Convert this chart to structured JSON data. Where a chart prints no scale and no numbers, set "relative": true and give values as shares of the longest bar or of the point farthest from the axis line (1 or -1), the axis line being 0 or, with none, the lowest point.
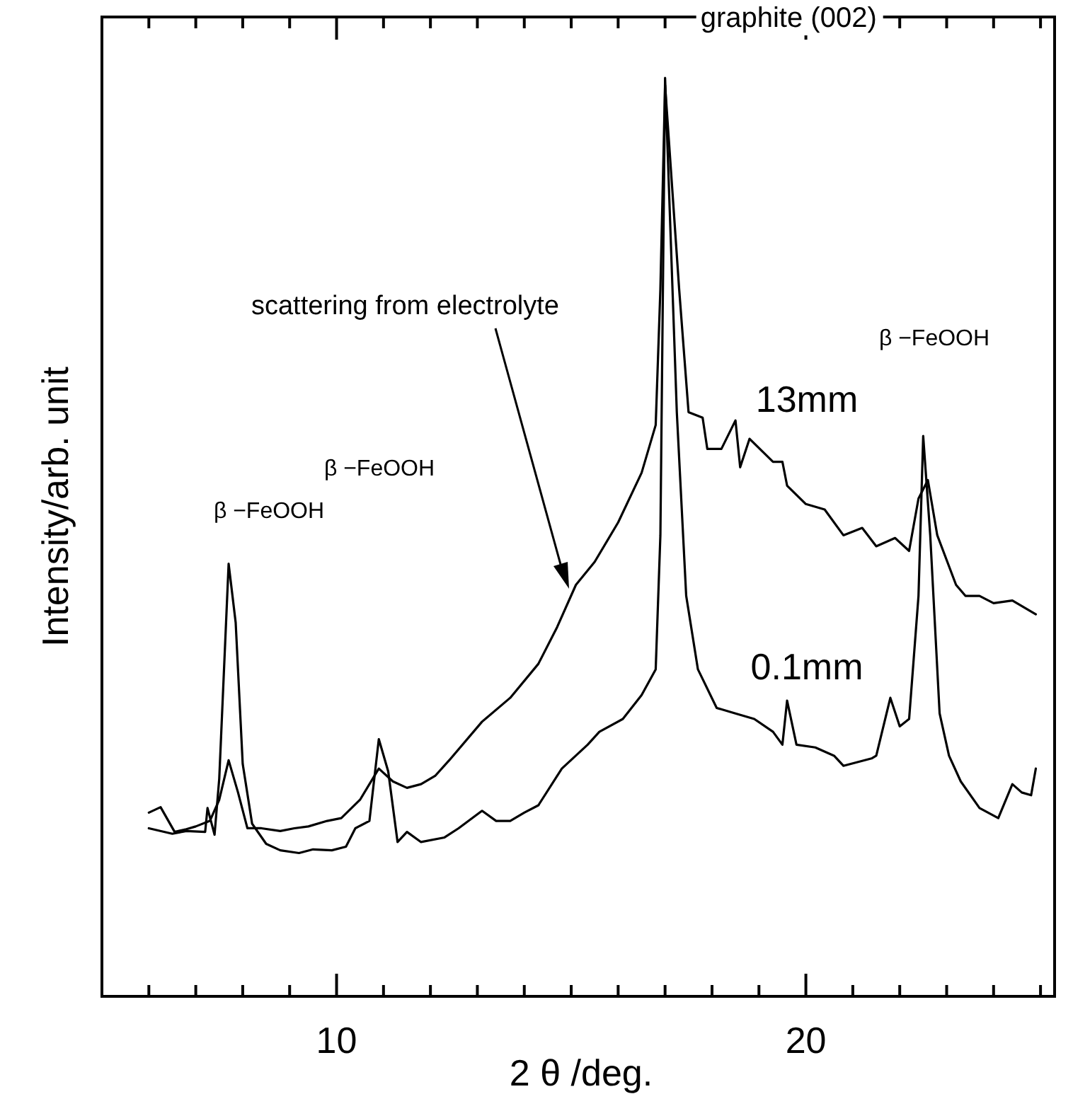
{
  "chart_data": {
    "type": "line",
    "xlabel": "2 θ /deg.",
    "ylabel": "Intensity/arb. unit",
    "relative": true,
    "xlim": [
      5,
      25.3
    ],
    "xticks": [
      {
        "value": 5,
        "label": null
      },
      {
        "value": 6,
        "label": null
      },
      {
        "value": 7,
        "label": null
      },
      {
        "value": 8,
        "label": null
      },
      {
        "value": 9,
        "label": null
      },
      10,
      {
        "value": 11,
        "label": null
      },
      {
        "value": 12,
        "label": null
      },
      {
        "value": 13,
        "label": null
      },
      {
        "value": 14,
        "label": null
      },
      {
        "value": 15,
        "label": null
      },
      {
        "value": 16,
        "label": null
      },
      {
        "value": 17,
        "label": null
      },
      {
        "value": 18,
        "label": null
      },
      {
        "value": 19,
        "label": null
      },
      20,
      {
        "value": 21,
        "label": null
      },
      {
        "value": 22,
        "label": null
      },
      {
        "value": 23,
        "label": null
      },
      {
        "value": 24,
        "label": null
      },
      {
        "value": 25,
        "label": null
      }
    ],
    "marker": "none",
    "line_style": "solid",
    "grid": false,
    "legend": false,
    "series": [
      {
        "name": "13mm",
        "color": "#000000",
        "x": [
          6.0,
          6.25,
          6.55,
          6.8,
          7.0,
          7.3,
          7.5,
          7.7,
          7.9,
          8.1,
          8.4,
          8.8,
          9.1,
          9.4,
          9.8,
          10.1,
          10.5,
          10.9,
          11.2,
          11.5,
          11.8,
          12.1,
          12.4,
          13.1,
          13.7,
          14.3,
          14.7,
          15.1,
          15.5,
          16.0,
          16.5,
          16.8,
          16.9,
          17.0,
          17.3,
          17.5,
          17.8,
          17.9,
          18.2,
          18.5,
          18.6,
          18.8,
          19.3,
          19.5,
          19.6,
          20.0,
          20.4,
          20.8,
          21.2,
          21.5,
          21.9,
          22.2,
          22.4,
          22.6,
          22.8,
          23.2,
          23.4,
          23.7,
          24.0,
          24.4,
          24.9
        ],
        "values": [
          0.2,
          0.206,
          0.179,
          0.182,
          0.185,
          0.191,
          0.214,
          0.257,
          0.222,
          0.183,
          0.183,
          0.18,
          0.183,
          0.185,
          0.191,
          0.194,
          0.214,
          0.248,
          0.234,
          0.227,
          0.231,
          0.24,
          0.257,
          0.299,
          0.325,
          0.362,
          0.402,
          0.448,
          0.473,
          0.516,
          0.57,
          0.622,
          0.77,
          0.992,
          0.77,
          0.636,
          0.63,
          0.596,
          0.596,
          0.627,
          0.576,
          0.607,
          0.582,
          0.582,
          0.556,
          0.536,
          0.53,
          0.502,
          0.51,
          0.49,
          0.499,
          0.485,
          0.542,
          0.562,
          0.502,
          0.448,
          0.436,
          0.436,
          0.428,
          0.431,
          0.416
        ]
      },
      {
        "name": "0.1mm",
        "color": "#000000",
        "x": [
          6.0,
          6.5,
          6.8,
          7.2,
          7.25,
          7.4,
          7.5,
          7.7,
          7.85,
          8.0,
          8.2,
          8.5,
          8.8,
          9.2,
          9.5,
          9.9,
          10.2,
          10.4,
          10.7,
          10.9,
          11.1,
          11.3,
          11.5,
          11.8,
          12.3,
          12.6,
          13.1,
          13.4,
          13.7,
          14.0,
          14.3,
          14.8,
          15.35,
          15.6,
          16.1,
          16.5,
          16.8,
          16.9,
          17.0,
          17.25,
          17.45,
          17.7,
          18.1,
          18.5,
          18.9,
          19.3,
          19.5,
          19.6,
          19.8,
          20.2,
          20.6,
          20.8,
          21.4,
          21.5,
          21.8,
          22.0,
          22.2,
          22.4,
          22.5,
          22.65,
          22.85,
          23.05,
          23.3,
          23.7,
          24.1,
          24.4,
          24.6,
          24.8,
          24.9
        ],
        "values": [
          0.183,
          0.177,
          0.18,
          0.179,
          0.205,
          0.176,
          0.237,
          0.471,
          0.407,
          0.253,
          0.188,
          0.166,
          0.159,
          0.156,
          0.16,
          0.159,
          0.163,
          0.183,
          0.191,
          0.28,
          0.245,
          0.168,
          0.179,
          0.168,
          0.173,
          0.183,
          0.202,
          0.191,
          0.191,
          0.2,
          0.208,
          0.248,
          0.274,
          0.288,
          0.302,
          0.328,
          0.356,
          0.502,
          1.0,
          0.636,
          0.436,
          0.356,
          0.314,
          0.308,
          0.302,
          0.288,
          0.274,
          0.322,
          0.274,
          0.271,
          0.262,
          0.251,
          0.259,
          0.262,
          0.325,
          0.294,
          0.302,
          0.436,
          0.61,
          0.502,
          0.308,
          0.262,
          0.234,
          0.205,
          0.194,
          0.231,
          0.222,
          0.219,
          0.248
        ]
      }
    ],
    "annotations": [
      {
        "text": "graphite (002)",
        "x": 17.0,
        "y": 1.0
      },
      "scattering from electrolyte",
      "β −FeOOH",
      "β −FeOOH",
      "β −FeOOH"
    ]
  }
}
